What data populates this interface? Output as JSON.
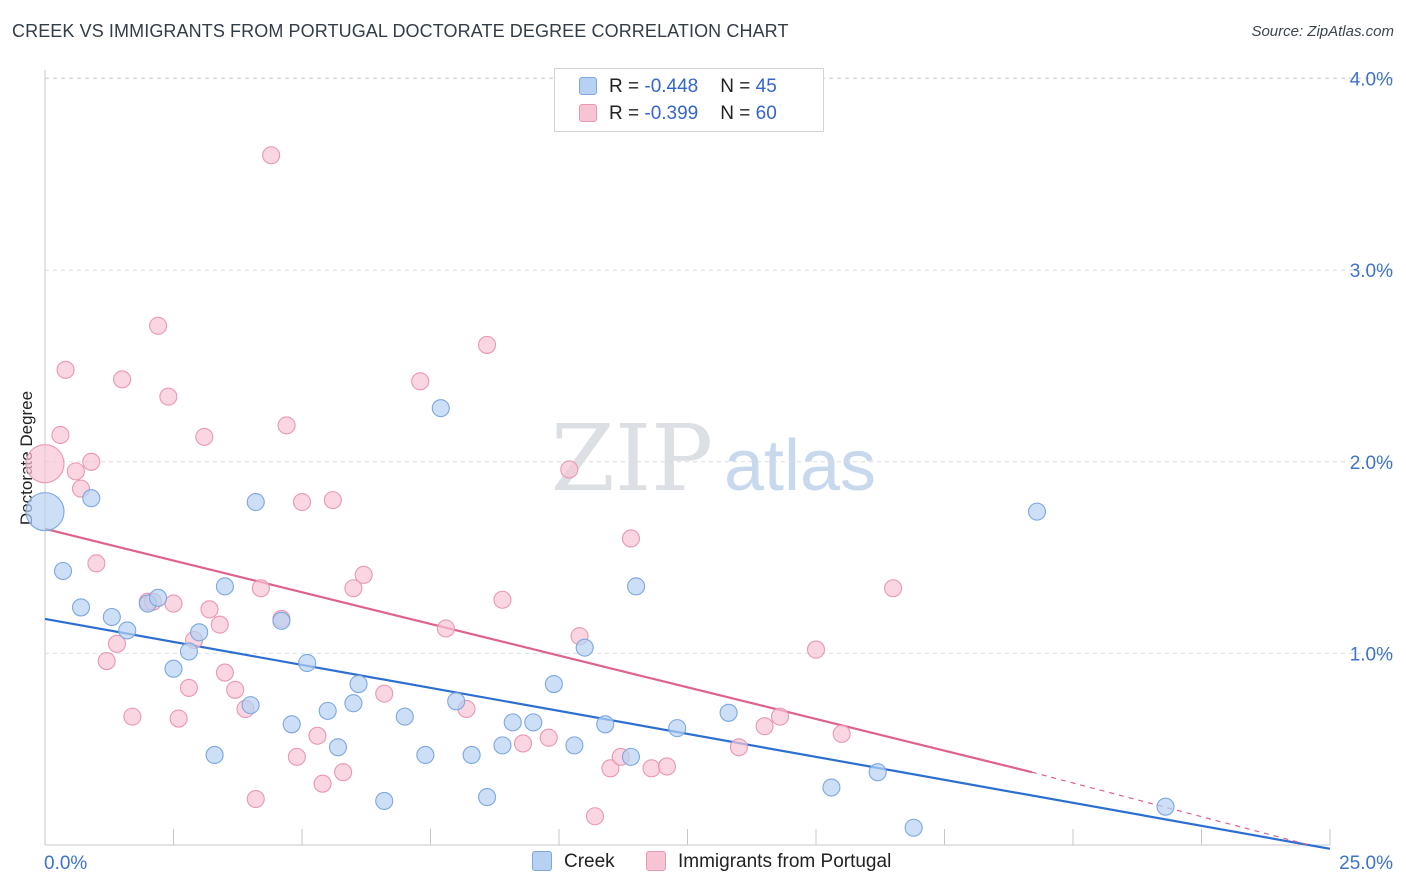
{
  "title": "CREEK VS IMMIGRANTS FROM PORTUGAL DOCTORATE DEGREE CORRELATION CHART",
  "source": "Source: ZipAtlas.com",
  "watermark": {
    "zip": "ZIP",
    "atlas": "atlas"
  },
  "legend": {
    "creek": {
      "r_label": "R = ",
      "r_value": "-0.448",
      "n_label": "N = ",
      "n_value": "45"
    },
    "portugal": {
      "r_label": "R = ",
      "r_value": "-0.399",
      "n_label": "N = ",
      "n_value": "60"
    }
  },
  "colors": {
    "creek_fill": "#b7d1f2",
    "creek_stroke": "#7da7de",
    "creek_line": "#2d6fd1",
    "portugal_fill": "#f7c4d4",
    "portugal_stroke": "#ea97b3",
    "portugal_line": "#e0608e",
    "axis_text": "#3f73c8",
    "grid": "#d9dde2"
  },
  "chart_data": {
    "type": "scatter",
    "title": "CREEK VS IMMIGRANTS FROM PORTUGAL DOCTORATE DEGREE CORRELATION CHART",
    "xlabel": "",
    "ylabel": "Doctorate Degree",
    "xlim": [
      0,
      25
    ],
    "ylim": [
      0,
      4.2
    ],
    "x_tick_labels": [
      "0.0%",
      "25.0%"
    ],
    "y_ticks": [
      1.0,
      2.0,
      3.0,
      4.0
    ],
    "y_tick_labels": [
      "1.0%",
      "2.0%",
      "3.0%",
      "4.0%"
    ],
    "legend_position": "top-center",
    "series": [
      {
        "name": "Creek",
        "r": -0.448,
        "n": 45,
        "trend": {
          "x": [
            0,
            25
          ],
          "y": [
            1.18,
            -0.02
          ]
        },
        "points": [
          {
            "x": 0.0,
            "y": 1.74,
            "big": true
          },
          {
            "x": 0.9,
            "y": 1.81
          },
          {
            "x": 0.35,
            "y": 1.43
          },
          {
            "x": 0.7,
            "y": 1.24
          },
          {
            "x": 1.3,
            "y": 1.19
          },
          {
            "x": 1.6,
            "y": 1.12
          },
          {
            "x": 2.0,
            "y": 1.26
          },
          {
            "x": 2.2,
            "y": 1.29
          },
          {
            "x": 2.5,
            "y": 0.92
          },
          {
            "x": 2.8,
            "y": 1.01
          },
          {
            "x": 3.0,
            "y": 1.11
          },
          {
            "x": 3.5,
            "y": 1.35
          },
          {
            "x": 4.1,
            "y": 1.79
          },
          {
            "x": 4.6,
            "y": 1.17
          },
          {
            "x": 4.0,
            "y": 0.73
          },
          {
            "x": 3.3,
            "y": 0.47
          },
          {
            "x": 4.8,
            "y": 0.63
          },
          {
            "x": 5.1,
            "y": 0.95
          },
          {
            "x": 5.5,
            "y": 0.7
          },
          {
            "x": 5.7,
            "y": 0.51
          },
          {
            "x": 6.0,
            "y": 0.74
          },
          {
            "x": 6.1,
            "y": 0.84
          },
          {
            "x": 6.6,
            "y": 0.23
          },
          {
            "x": 7.0,
            "y": 0.67
          },
          {
            "x": 7.4,
            "y": 0.47
          },
          {
            "x": 8.0,
            "y": 0.75
          },
          {
            "x": 8.3,
            "y": 0.47
          },
          {
            "x": 8.6,
            "y": 0.25
          },
          {
            "x": 8.9,
            "y": 0.52
          },
          {
            "x": 9.1,
            "y": 0.64
          },
          {
            "x": 9.5,
            "y": 0.64
          },
          {
            "x": 9.9,
            "y": 0.84
          },
          {
            "x": 10.3,
            "y": 0.52
          },
          {
            "x": 10.5,
            "y": 1.03
          },
          {
            "x": 10.9,
            "y": 0.63
          },
          {
            "x": 11.4,
            "y": 0.46
          },
          {
            "x": 11.5,
            "y": 1.35
          },
          {
            "x": 12.3,
            "y": 0.61
          },
          {
            "x": 13.3,
            "y": 0.69
          },
          {
            "x": 15.3,
            "y": 0.3
          },
          {
            "x": 16.2,
            "y": 0.38
          },
          {
            "x": 16.9,
            "y": 0.09
          },
          {
            "x": 19.3,
            "y": 1.74
          },
          {
            "x": 21.8,
            "y": 0.2
          },
          {
            "x": 7.7,
            "y": 2.28
          }
        ]
      },
      {
        "name": "Immigrants from Portugal",
        "r": -0.399,
        "n": 60,
        "trend": {
          "x": [
            0,
            19.2
          ],
          "y": [
            1.65,
            0.38
          ]
        },
        "trend_dashed": {
          "x": [
            19.2,
            24.6
          ],
          "y": [
            0.38,
            0.0
          ]
        },
        "points": [
          {
            "x": 0.0,
            "y": 1.99,
            "big": true
          },
          {
            "x": 0.3,
            "y": 2.14
          },
          {
            "x": 0.4,
            "y": 2.48
          },
          {
            "x": 0.6,
            "y": 1.95
          },
          {
            "x": 0.7,
            "y": 1.86
          },
          {
            "x": 0.9,
            "y": 2.0
          },
          {
            "x": 1.0,
            "y": 1.47
          },
          {
            "x": 1.2,
            "y": 0.96
          },
          {
            "x": 1.4,
            "y": 1.05
          },
          {
            "x": 1.5,
            "y": 2.43
          },
          {
            "x": 1.7,
            "y": 0.67
          },
          {
            "x": 2.0,
            "y": 1.27
          },
          {
            "x": 2.1,
            "y": 1.27
          },
          {
            "x": 2.2,
            "y": 2.71
          },
          {
            "x": 2.4,
            "y": 2.34
          },
          {
            "x": 2.5,
            "y": 1.26
          },
          {
            "x": 2.6,
            "y": 0.66
          },
          {
            "x": 2.8,
            "y": 0.82
          },
          {
            "x": 2.9,
            "y": 1.07
          },
          {
            "x": 3.1,
            "y": 2.13
          },
          {
            "x": 3.2,
            "y": 1.23
          },
          {
            "x": 3.4,
            "y": 1.15
          },
          {
            "x": 3.5,
            "y": 0.9
          },
          {
            "x": 3.7,
            "y": 0.81
          },
          {
            "x": 3.9,
            "y": 0.71
          },
          {
            "x": 4.1,
            "y": 0.24
          },
          {
            "x": 4.2,
            "y": 1.34
          },
          {
            "x": 4.4,
            "y": 3.6
          },
          {
            "x": 4.6,
            "y": 1.18
          },
          {
            "x": 4.7,
            "y": 2.19
          },
          {
            "x": 4.9,
            "y": 0.46
          },
          {
            "x": 5.0,
            "y": 1.79
          },
          {
            "x": 5.3,
            "y": 0.57
          },
          {
            "x": 5.4,
            "y": 0.32
          },
          {
            "x": 5.6,
            "y": 1.8
          },
          {
            "x": 5.8,
            "y": 0.38
          },
          {
            "x": 6.0,
            "y": 1.34
          },
          {
            "x": 6.2,
            "y": 1.41
          },
          {
            "x": 6.6,
            "y": 0.79
          },
          {
            "x": 7.3,
            "y": 2.42
          },
          {
            "x": 7.8,
            "y": 1.13
          },
          {
            "x": 8.2,
            "y": 0.71
          },
          {
            "x": 8.6,
            "y": 2.61
          },
          {
            "x": 8.9,
            "y": 1.28
          },
          {
            "x": 9.3,
            "y": 0.53
          },
          {
            "x": 9.8,
            "y": 0.56
          },
          {
            "x": 10.2,
            "y": 1.96
          },
          {
            "x": 10.4,
            "y": 1.09
          },
          {
            "x": 10.7,
            "y": 0.15
          },
          {
            "x": 11.0,
            "y": 0.4
          },
          {
            "x": 11.2,
            "y": 0.46
          },
          {
            "x": 11.4,
            "y": 1.6
          },
          {
            "x": 11.8,
            "y": 0.4
          },
          {
            "x": 12.1,
            "y": 0.41
          },
          {
            "x": 13.5,
            "y": 0.51
          },
          {
            "x": 14.0,
            "y": 0.62
          },
          {
            "x": 14.3,
            "y": 0.67
          },
          {
            "x": 15.0,
            "y": 1.02
          },
          {
            "x": 15.5,
            "y": 0.58
          },
          {
            "x": 16.5,
            "y": 1.34
          }
        ]
      }
    ]
  }
}
